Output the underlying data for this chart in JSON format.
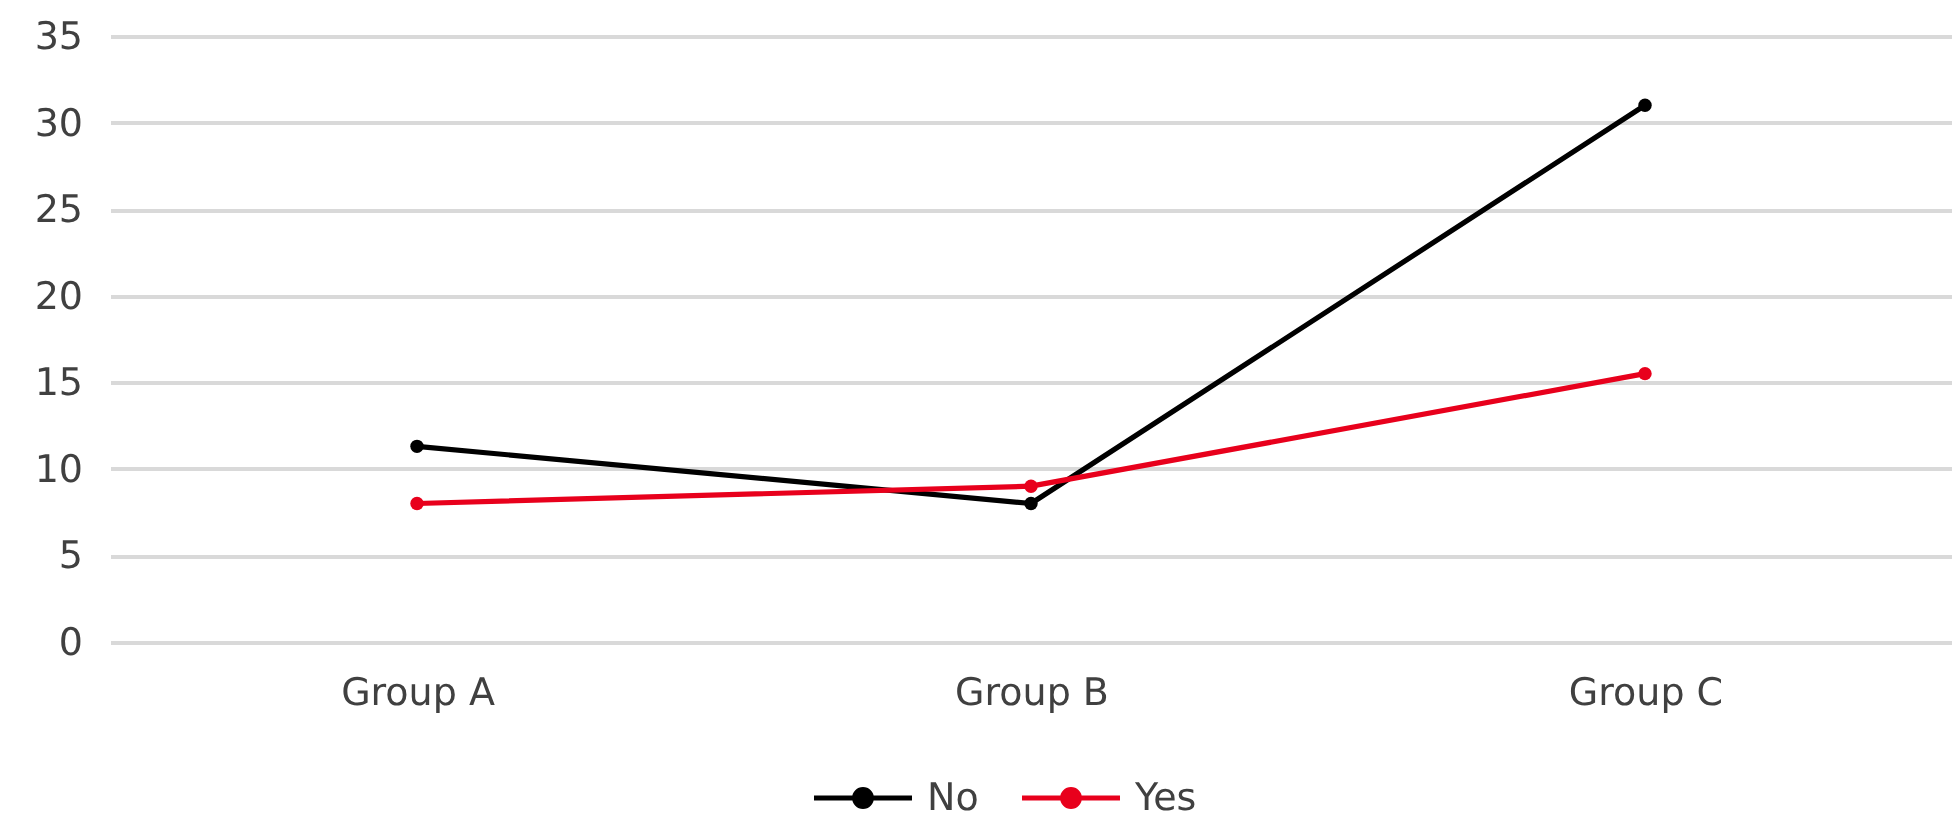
{
  "chart_data": {
    "type": "line",
    "categories": [
      "Group A",
      "Group B",
      "Group C"
    ],
    "series": [
      {
        "name": "No",
        "color": "#000000",
        "values": [
          11.3,
          8,
          31
        ]
      },
      {
        "name": "Yes",
        "color": "#e8001c",
        "values": [
          8,
          9,
          15.5
        ]
      }
    ],
    "ylim": [
      0,
      35
    ],
    "yticks": [
      0,
      5,
      10,
      15,
      20,
      25,
      30,
      35
    ],
    "grid": "y",
    "legend": "bottom",
    "marker": "circle",
    "line_style": "solid"
  }
}
